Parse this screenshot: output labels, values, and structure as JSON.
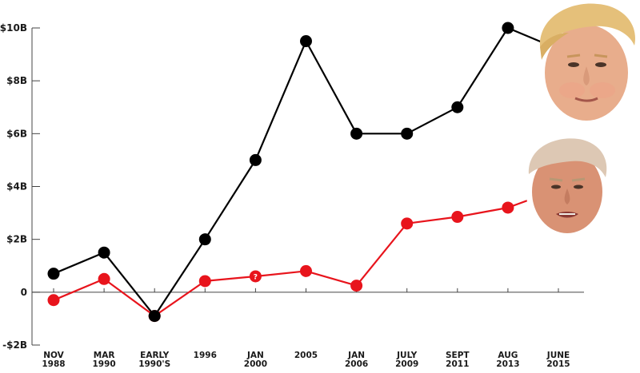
{
  "chart_data": {
    "type": "line",
    "title": "",
    "xlabel": "",
    "ylabel": "",
    "ylim": [
      -2,
      10
    ],
    "grid": false,
    "categories": [
      [
        "NOV",
        "1988"
      ],
      [
        "MAR",
        "1990"
      ],
      [
        "EARLY",
        "1990'S"
      ],
      [
        "1996"
      ],
      [
        "JAN",
        "2000"
      ],
      [
        "2005"
      ],
      [
        "JAN",
        "2006"
      ],
      [
        "JULY",
        "2009"
      ],
      [
        "SEPT",
        "2011"
      ],
      [
        "AUG",
        "2013"
      ],
      [
        "JUNE",
        "2015"
      ]
    ],
    "y_ticks": [
      {
        "value": 10,
        "label": "$10B"
      },
      {
        "value": 8,
        "label": "$8B"
      },
      {
        "value": 6,
        "label": "$6B"
      },
      {
        "value": 4,
        "label": "$4B"
      },
      {
        "value": 2,
        "label": "$2B"
      },
      {
        "value": 0,
        "label": "0"
      },
      {
        "value": -2,
        "label": "-$2B"
      }
    ],
    "series": [
      {
        "color": "#000000",
        "values": [
          0.7,
          1.5,
          -0.9,
          2.0,
          5.0,
          9.5,
          6.0,
          6.0,
          7.0,
          10.0,
          9.2
        ]
      },
      {
        "color": "#e8141c",
        "values": [
          -0.3,
          0.5,
          -0.9,
          0.42,
          0.6,
          0.8,
          0.25,
          2.6,
          2.85,
          3.2,
          3.9
        ]
      }
    ],
    "annotations": [
      {
        "series": 1,
        "index": 4,
        "text": "?"
      }
    ],
    "images": [
      {
        "name": "trump-face-top",
        "series": 0
      },
      {
        "name": "trump-face-bottom",
        "series": 1
      }
    ]
  }
}
